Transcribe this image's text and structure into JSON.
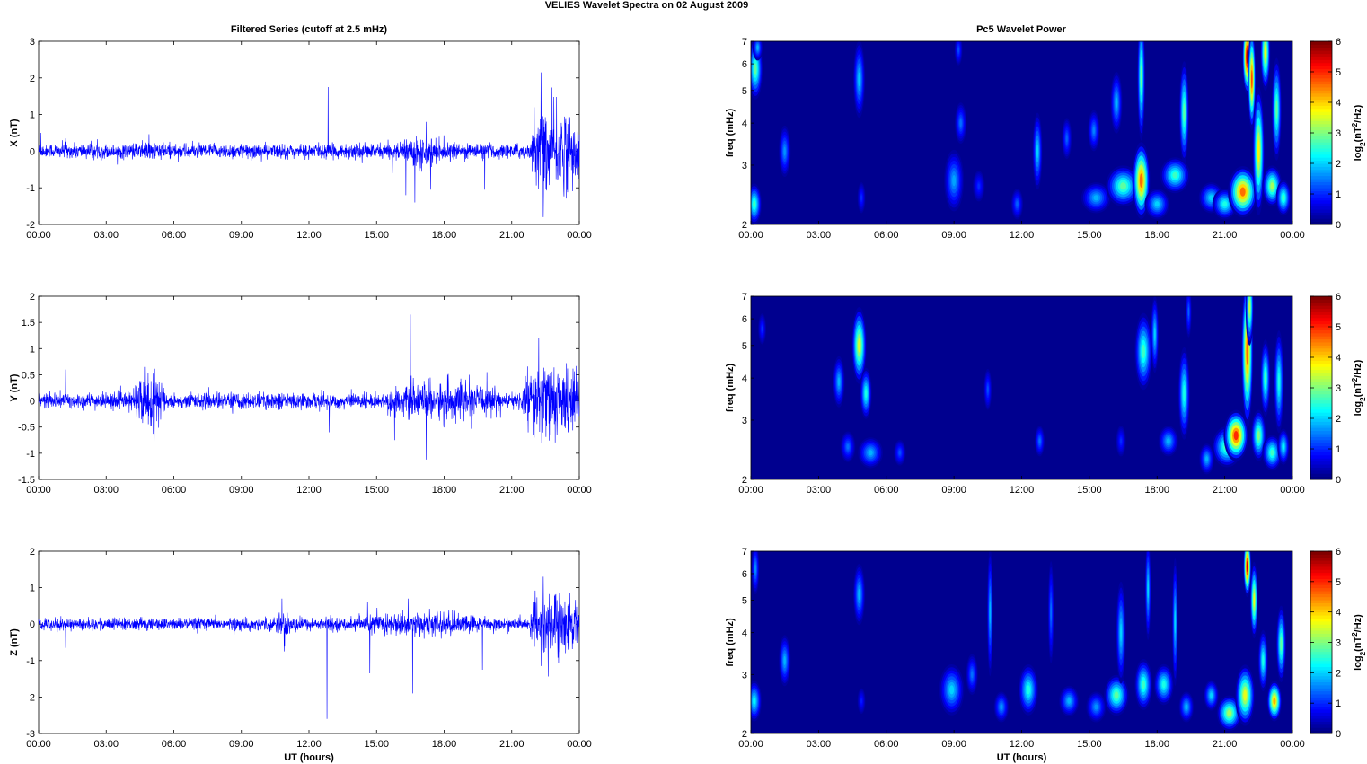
{
  "figure_title": "VELIES Wavelet Spectra on 02 August     2009",
  "left_column_title": "Filtered Series (cutoff at 2.5 mHz)",
  "right_column_title": "Pc5 Wavelet Power",
  "x_label": "UT (hours)",
  "x_ticks": [
    "00:00",
    "03:00",
    "06:00",
    "09:00",
    "12:00",
    "15:00",
    "18:00",
    "21:00",
    "00:00"
  ],
  "colors": {
    "trace": "#0000ff",
    "background_map": "#00008f"
  },
  "chart_data": [
    {
      "type": "line",
      "panel": "X",
      "ylabel": "X (nT)",
      "xlim": [
        0,
        24
      ],
      "ylim": [
        -2,
        3
      ],
      "y_ticks": [
        "-2",
        "-1",
        "0",
        "1",
        "2",
        "3"
      ],
      "baseline_amplitude": 0.12,
      "x_range_label": "UT hours",
      "peaks": [
        {
          "t": 0.1,
          "v": 0.5
        },
        {
          "t": 1.2,
          "v": 0.35
        },
        {
          "t": 4.6,
          "v": 0.3
        },
        {
          "t": 12.85,
          "v": 1.75
        },
        {
          "t": 15.7,
          "v": -0.6
        },
        {
          "t": 16.3,
          "v": -1.2
        },
        {
          "t": 16.7,
          "v": -1.4
        },
        {
          "t": 17.2,
          "v": 0.8
        },
        {
          "t": 17.4,
          "v": -1.05
        },
        {
          "t": 19.8,
          "v": -1.05
        },
        {
          "t": 22.3,
          "v": 2.15
        },
        {
          "t": 22.4,
          "v": -1.8
        },
        {
          "t": 22.0,
          "v": 1.2
        },
        {
          "t": 23.4,
          "v": 0.9
        }
      ],
      "active_windows": [
        {
          "from": 4.5,
          "to": 5.5,
          "amp": 0.2
        },
        {
          "from": 16.0,
          "to": 18.0,
          "amp": 0.25
        },
        {
          "from": 21.9,
          "to": 24.0,
          "amp": 0.7
        }
      ]
    },
    {
      "type": "line",
      "panel": "Y",
      "ylabel": "Y (nT)",
      "xlim": [
        0,
        24
      ],
      "ylim": [
        -1.5,
        2
      ],
      "y_ticks": [
        "-1.5",
        "-1",
        "-0.5",
        "0",
        "0.5",
        "1",
        "1.5",
        "2"
      ],
      "baseline_amplitude": 0.09,
      "peaks": [
        {
          "t": 1.2,
          "v": 0.6
        },
        {
          "t": 4.7,
          "v": 0.65
        },
        {
          "t": 12.9,
          "v": -0.6
        },
        {
          "t": 15.8,
          "v": 0.75
        },
        {
          "t": 15.8,
          "v": -0.75
        },
        {
          "t": 16.5,
          "v": 1.65
        },
        {
          "t": 17.2,
          "v": -1.12
        },
        {
          "t": 19.9,
          "v": 0.55
        },
        {
          "t": 22.2,
          "v": 1.2
        },
        {
          "t": 22.0,
          "v": -0.7
        },
        {
          "t": 23.5,
          "v": -0.6
        }
      ],
      "active_windows": [
        {
          "from": 4.2,
          "to": 5.6,
          "amp": 0.32
        },
        {
          "from": 15.5,
          "to": 20.5,
          "amp": 0.22
        },
        {
          "from": 21.5,
          "to": 24.0,
          "amp": 0.42
        }
      ]
    },
    {
      "type": "line",
      "panel": "Z",
      "ylabel": "Z (nT)",
      "xlim": [
        0,
        24
      ],
      "ylim": [
        -3,
        2
      ],
      "y_ticks": [
        "-3",
        "-2",
        "-1",
        "0",
        "1",
        "2"
      ],
      "baseline_amplitude": 0.1,
      "peaks": [
        {
          "t": 1.2,
          "v": -0.65
        },
        {
          "t": 10.8,
          "v": 0.7
        },
        {
          "t": 10.9,
          "v": -0.75
        },
        {
          "t": 12.8,
          "v": -2.6
        },
        {
          "t": 14.7,
          "v": -1.35
        },
        {
          "t": 14.6,
          "v": 0.6
        },
        {
          "t": 16.6,
          "v": -1.9
        },
        {
          "t": 16.4,
          "v": 0.7
        },
        {
          "t": 19.7,
          "v": -1.25
        },
        {
          "t": 22.4,
          "v": 1.3
        },
        {
          "t": 22.3,
          "v": -1.15
        },
        {
          "t": 23.5,
          "v": -0.7
        }
      ],
      "active_windows": [
        {
          "from": 10.5,
          "to": 11.5,
          "amp": 0.2
        },
        {
          "from": 14.0,
          "to": 20.0,
          "amp": 0.2
        },
        {
          "from": 21.8,
          "to": 24.0,
          "amp": 0.55
        }
      ]
    },
    {
      "type": "heatmap",
      "panel": "X",
      "ylabel": "freq (mHz)",
      "y_scale": "log",
      "ylim": [
        2,
        7
      ],
      "y_ticks": [
        "2",
        "3",
        "4",
        "5",
        "6",
        "7"
      ],
      "xlim": [
        0,
        24
      ],
      "colorbar_label": "log2(nT2/Hz)",
      "colorbar_ticks": [
        "0",
        "1",
        "2",
        "3",
        "4",
        "5",
        "6"
      ],
      "blobs": [
        {
          "t": 0.15,
          "f": 2.3,
          "p": 2.6,
          "w": 0.15,
          "h": 0.08
        },
        {
          "t": 0.2,
          "f": 5.8,
          "p": 2.8,
          "w": 0.15,
          "h": 0.12
        },
        {
          "t": 0.3,
          "f": 6.7,
          "p": 1.8,
          "w": 0.1,
          "h": 0.05
        },
        {
          "t": 1.5,
          "f": 3.3,
          "p": 1.6,
          "w": 0.12,
          "h": 0.1
        },
        {
          "t": 4.8,
          "f": 5.4,
          "p": 1.9,
          "w": 0.12,
          "h": 0.15
        },
        {
          "t": 4.9,
          "f": 2.4,
          "p": 1.0,
          "w": 0.08,
          "h": 0.06
        },
        {
          "t": 9.0,
          "f": 2.7,
          "p": 1.7,
          "w": 0.2,
          "h": 0.12
        },
        {
          "t": 9.3,
          "f": 4.0,
          "p": 1.4,
          "w": 0.12,
          "h": 0.08
        },
        {
          "t": 9.2,
          "f": 6.6,
          "p": 1.2,
          "w": 0.08,
          "h": 0.06
        },
        {
          "t": 10.1,
          "f": 2.6,
          "p": 1.0,
          "w": 0.12,
          "h": 0.06
        },
        {
          "t": 11.8,
          "f": 2.3,
          "p": 1.3,
          "w": 0.12,
          "h": 0.06
        },
        {
          "t": 12.7,
          "f": 3.3,
          "p": 2.0,
          "w": 0.1,
          "h": 0.15
        },
        {
          "t": 14.0,
          "f": 3.6,
          "p": 1.3,
          "w": 0.1,
          "h": 0.08
        },
        {
          "t": 15.3,
          "f": 2.4,
          "p": 1.8,
          "w": 0.3,
          "h": 0.06
        },
        {
          "t": 15.2,
          "f": 3.8,
          "p": 1.5,
          "w": 0.12,
          "h": 0.08
        },
        {
          "t": 16.2,
          "f": 4.6,
          "p": 1.8,
          "w": 0.12,
          "h": 0.12
        },
        {
          "t": 16.5,
          "f": 2.6,
          "p": 2.8,
          "w": 0.35,
          "h": 0.08
        },
        {
          "t": 17.3,
          "f": 2.7,
          "p": 4.6,
          "w": 0.18,
          "h": 0.15
        },
        {
          "t": 17.3,
          "f": 5.5,
          "p": 2.8,
          "w": 0.08,
          "h": 0.25
        },
        {
          "t": 18.0,
          "f": 2.3,
          "p": 2.0,
          "w": 0.25,
          "h": 0.06
        },
        {
          "t": 18.8,
          "f": 2.8,
          "p": 2.6,
          "w": 0.3,
          "h": 0.07
        },
        {
          "t": 19.2,
          "f": 4.3,
          "p": 2.8,
          "w": 0.1,
          "h": 0.2
        },
        {
          "t": 20.4,
          "f": 2.4,
          "p": 2.0,
          "w": 0.25,
          "h": 0.06
        },
        {
          "t": 21.0,
          "f": 2.3,
          "p": 2.4,
          "w": 0.25,
          "h": 0.06
        },
        {
          "t": 21.8,
          "f": 2.5,
          "p": 4.6,
          "w": 0.3,
          "h": 0.1
        },
        {
          "t": 22.0,
          "f": 6.3,
          "p": 5.8,
          "w": 0.1,
          "h": 0.15
        },
        {
          "t": 22.2,
          "f": 5.4,
          "p": 4.8,
          "w": 0.08,
          "h": 0.2
        },
        {
          "t": 22.5,
          "f": 3.3,
          "p": 3.8,
          "w": 0.12,
          "h": 0.25
        },
        {
          "t": 22.8,
          "f": 6.5,
          "p": 3.6,
          "w": 0.1,
          "h": 0.15
        },
        {
          "t": 23.1,
          "f": 2.6,
          "p": 3.2,
          "w": 0.2,
          "h": 0.08
        },
        {
          "t": 23.3,
          "f": 4.4,
          "p": 2.8,
          "w": 0.1,
          "h": 0.2
        },
        {
          "t": 23.6,
          "f": 2.4,
          "p": 2.6,
          "w": 0.15,
          "h": 0.07
        }
      ]
    },
    {
      "type": "heatmap",
      "panel": "Y",
      "ylabel": "freq (mHz)",
      "y_scale": "log",
      "ylim": [
        2,
        7
      ],
      "y_ticks": [
        "2",
        "3",
        "4",
        "5",
        "6",
        "7"
      ],
      "xlim": [
        0,
        24
      ],
      "colorbar_label": "log2(nT2/Hz)",
      "colorbar_ticks": [
        "0",
        "1",
        "2",
        "3",
        "4",
        "5",
        "6"
      ],
      "blobs": [
        {
          "t": 0.5,
          "f": 5.6,
          "p": 1.0,
          "w": 0.08,
          "h": 0.06
        },
        {
          "t": 3.9,
          "f": 3.9,
          "p": 1.8,
          "w": 0.12,
          "h": 0.1
        },
        {
          "t": 4.3,
          "f": 2.5,
          "p": 1.4,
          "w": 0.15,
          "h": 0.06
        },
        {
          "t": 4.8,
          "f": 5.0,
          "p": 3.5,
          "w": 0.15,
          "h": 0.15
        },
        {
          "t": 5.1,
          "f": 3.6,
          "p": 2.4,
          "w": 0.12,
          "h": 0.1
        },
        {
          "t": 5.3,
          "f": 2.4,
          "p": 1.8,
          "w": 0.25,
          "h": 0.06
        },
        {
          "t": 6.6,
          "f": 2.4,
          "p": 1.2,
          "w": 0.12,
          "h": 0.05
        },
        {
          "t": 10.5,
          "f": 3.7,
          "p": 1.2,
          "w": 0.08,
          "h": 0.08
        },
        {
          "t": 12.8,
          "f": 2.6,
          "p": 1.4,
          "w": 0.1,
          "h": 0.06
        },
        {
          "t": 16.4,
          "f": 2.6,
          "p": 1.0,
          "w": 0.1,
          "h": 0.06
        },
        {
          "t": 17.4,
          "f": 4.8,
          "p": 2.6,
          "w": 0.18,
          "h": 0.15
        },
        {
          "t": 17.9,
          "f": 5.4,
          "p": 2.0,
          "w": 0.08,
          "h": 0.15
        },
        {
          "t": 18.5,
          "f": 2.6,
          "p": 1.8,
          "w": 0.2,
          "h": 0.06
        },
        {
          "t": 19.2,
          "f": 3.6,
          "p": 2.4,
          "w": 0.12,
          "h": 0.18
        },
        {
          "t": 19.4,
          "f": 6.3,
          "p": 1.3,
          "w": 0.06,
          "h": 0.1
        },
        {
          "t": 20.2,
          "f": 2.3,
          "p": 1.8,
          "w": 0.15,
          "h": 0.06
        },
        {
          "t": 21.1,
          "f": 2.5,
          "p": 2.8,
          "w": 0.3,
          "h": 0.08
        },
        {
          "t": 21.5,
          "f": 2.7,
          "p": 5.0,
          "w": 0.25,
          "h": 0.1
        },
        {
          "t": 22.0,
          "f": 4.8,
          "p": 4.6,
          "w": 0.12,
          "h": 0.3
        },
        {
          "t": 22.1,
          "f": 6.5,
          "p": 3.4,
          "w": 0.08,
          "h": 0.15
        },
        {
          "t": 22.5,
          "f": 2.7,
          "p": 3.0,
          "w": 0.15,
          "h": 0.1
        },
        {
          "t": 22.8,
          "f": 4.0,
          "p": 2.6,
          "w": 0.1,
          "h": 0.15
        },
        {
          "t": 23.1,
          "f": 2.4,
          "p": 2.6,
          "w": 0.2,
          "h": 0.07
        },
        {
          "t": 23.4,
          "f": 3.9,
          "p": 2.4,
          "w": 0.1,
          "h": 0.2
        },
        {
          "t": 23.6,
          "f": 2.5,
          "p": 2.2,
          "w": 0.12,
          "h": 0.07
        }
      ]
    },
    {
      "type": "heatmap",
      "panel": "Z",
      "ylabel": "freq (mHz)",
      "y_scale": "log",
      "ylim": [
        2,
        7
      ],
      "y_ticks": [
        "2",
        "3",
        "4",
        "5",
        "6",
        "7"
      ],
      "xlim": [
        0,
        24
      ],
      "colorbar_label": "log2(nT2/Hz)",
      "colorbar_ticks": [
        "0",
        "1",
        "2",
        "3",
        "4",
        "5",
        "6"
      ],
      "blobs": [
        {
          "t": 0.15,
          "f": 2.5,
          "p": 2.2,
          "w": 0.15,
          "h": 0.08
        },
        {
          "t": 0.2,
          "f": 6.2,
          "p": 1.6,
          "w": 0.08,
          "h": 0.1
        },
        {
          "t": 1.5,
          "f": 3.3,
          "p": 1.8,
          "w": 0.12,
          "h": 0.1
        },
        {
          "t": 4.8,
          "f": 5.2,
          "p": 1.8,
          "w": 0.12,
          "h": 0.12
        },
        {
          "t": 4.9,
          "f": 2.5,
          "p": 0.9,
          "w": 0.08,
          "h": 0.05
        },
        {
          "t": 8.9,
          "f": 2.7,
          "p": 2.0,
          "w": 0.25,
          "h": 0.1
        },
        {
          "t": 9.8,
          "f": 3.0,
          "p": 1.4,
          "w": 0.12,
          "h": 0.08
        },
        {
          "t": 10.6,
          "f": 4.6,
          "p": 1.8,
          "w": 0.06,
          "h": 0.25
        },
        {
          "t": 11.1,
          "f": 2.4,
          "p": 1.6,
          "w": 0.15,
          "h": 0.06
        },
        {
          "t": 12.3,
          "f": 2.7,
          "p": 2.4,
          "w": 0.2,
          "h": 0.1
        },
        {
          "t": 13.3,
          "f": 4.6,
          "p": 1.4,
          "w": 0.06,
          "h": 0.2
        },
        {
          "t": 14.1,
          "f": 2.5,
          "p": 1.8,
          "w": 0.2,
          "h": 0.06
        },
        {
          "t": 15.3,
          "f": 2.4,
          "p": 1.6,
          "w": 0.2,
          "h": 0.06
        },
        {
          "t": 16.2,
          "f": 2.6,
          "p": 2.8,
          "w": 0.25,
          "h": 0.08
        },
        {
          "t": 16.4,
          "f": 4.0,
          "p": 2.0,
          "w": 0.1,
          "h": 0.2
        },
        {
          "t": 17.4,
          "f": 2.8,
          "p": 2.6,
          "w": 0.18,
          "h": 0.1
        },
        {
          "t": 17.6,
          "f": 5.4,
          "p": 2.0,
          "w": 0.06,
          "h": 0.2
        },
        {
          "t": 18.3,
          "f": 2.8,
          "p": 2.4,
          "w": 0.2,
          "h": 0.08
        },
        {
          "t": 18.8,
          "f": 4.3,
          "p": 2.0,
          "w": 0.06,
          "h": 0.25
        },
        {
          "t": 19.3,
          "f": 2.4,
          "p": 1.8,
          "w": 0.15,
          "h": 0.06
        },
        {
          "t": 20.4,
          "f": 2.6,
          "p": 2.0,
          "w": 0.15,
          "h": 0.06
        },
        {
          "t": 21.2,
          "f": 2.3,
          "p": 3.2,
          "w": 0.25,
          "h": 0.07
        },
        {
          "t": 21.9,
          "f": 2.6,
          "p": 3.6,
          "w": 0.2,
          "h": 0.12
        },
        {
          "t": 22.0,
          "f": 6.3,
          "p": 5.5,
          "w": 0.08,
          "h": 0.12
        },
        {
          "t": 22.3,
          "f": 5.0,
          "p": 3.6,
          "w": 0.08,
          "h": 0.15
        },
        {
          "t": 22.7,
          "f": 3.3,
          "p": 2.4,
          "w": 0.1,
          "h": 0.12
        },
        {
          "t": 23.2,
          "f": 2.5,
          "p": 4.2,
          "w": 0.15,
          "h": 0.08
        },
        {
          "t": 23.5,
          "f": 3.7,
          "p": 2.8,
          "w": 0.1,
          "h": 0.15
        }
      ]
    }
  ]
}
